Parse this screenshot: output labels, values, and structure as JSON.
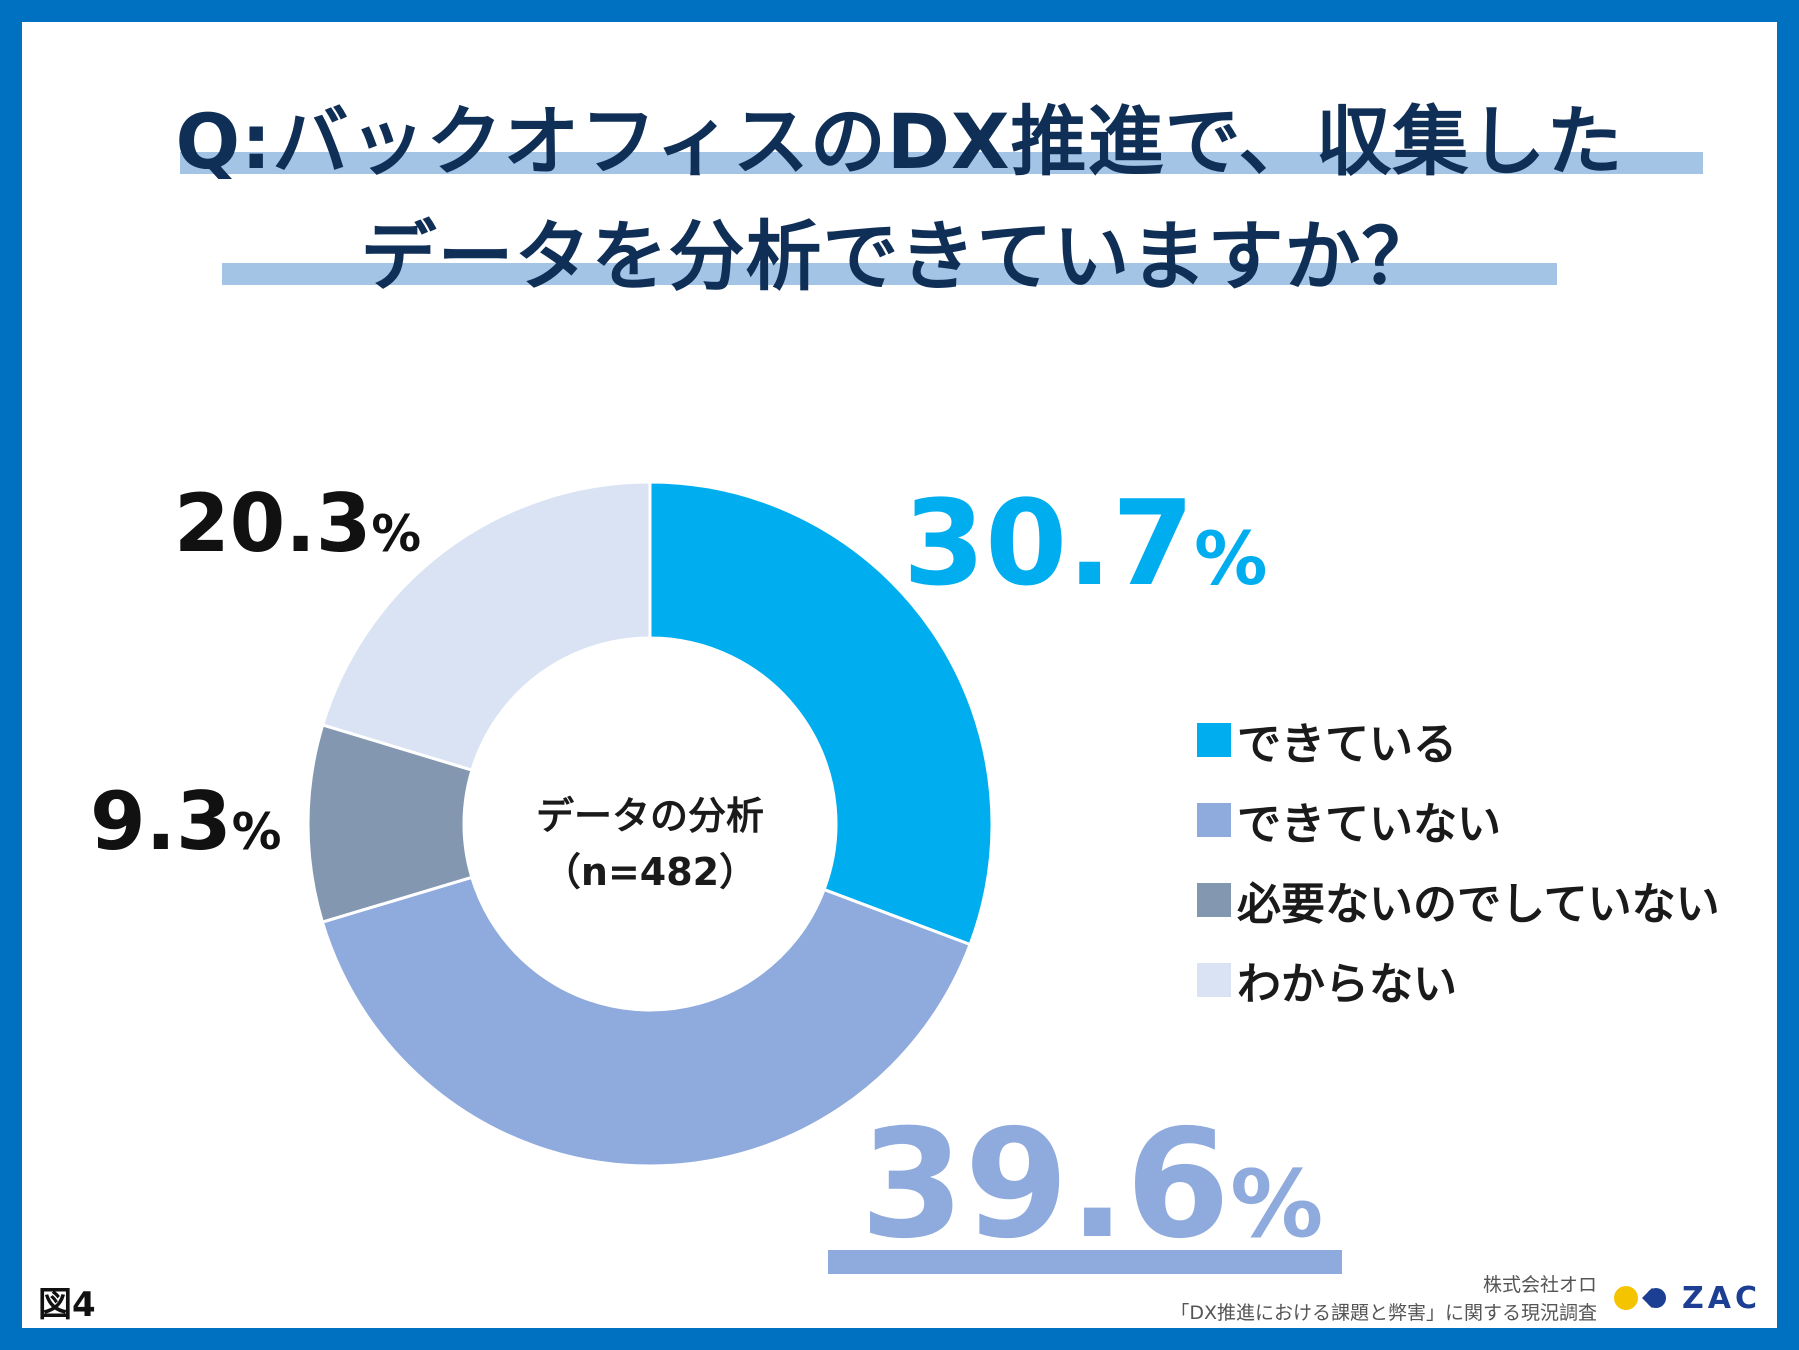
{
  "title": {
    "line1": "Q:バックオフィスのDX推進で、収集した",
    "line2": "データを分析できていますか？"
  },
  "chart_data": {
    "type": "pie",
    "donut": true,
    "center_label": {
      "line1": "データの分析",
      "line2": "（n=482）"
    },
    "categories": [
      "できている",
      "できていない",
      "必要ないのでしていない",
      "わからない"
    ],
    "values": [
      30.7,
      39.6,
      9.3,
      20.3
    ],
    "value_labels": [
      "30.7",
      "39.6",
      "9.3",
      "20.3"
    ],
    "unit": "%",
    "colors": [
      "#00aeef",
      "#8faadc",
      "#8497b0",
      "#dae3f3"
    ],
    "legend_position": "right",
    "start_angle_deg": 0,
    "direction": "clockwise"
  },
  "figure_label": "図4",
  "credit": {
    "company": "株式会社オロ",
    "survey": "「DX推進における課題と弊害」に関する現況調査"
  },
  "logo": {
    "text": "ZAC",
    "dot_colors": [
      "#f5c400",
      "#1c3f94"
    ]
  }
}
